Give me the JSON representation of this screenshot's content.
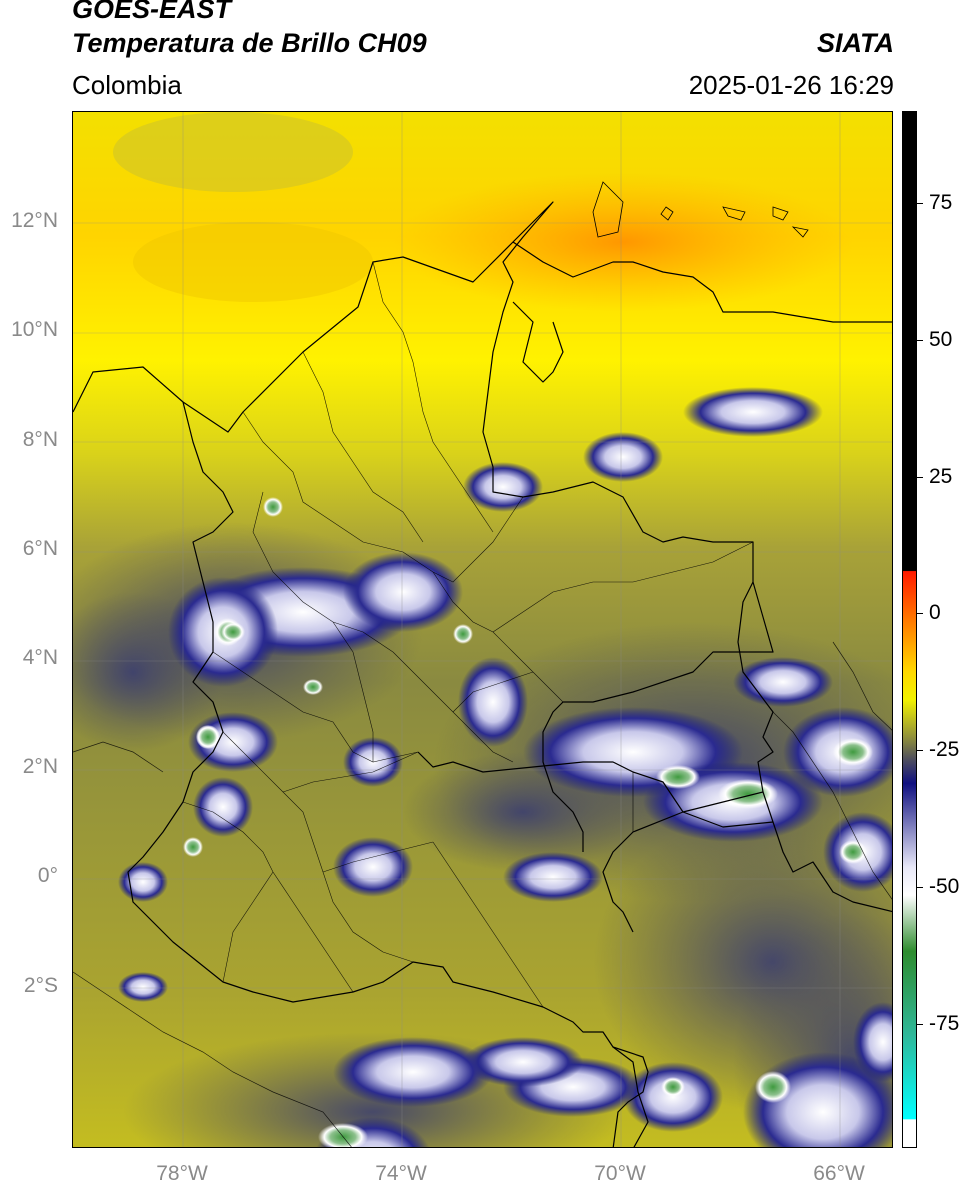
{
  "header": {
    "satellite": "GOES-EAST",
    "product": "Temperatura de Brillo CH09",
    "organization": "SIATA",
    "region": "Colombia",
    "datetime": "2025-01-26 16:29"
  },
  "map": {
    "lon_range": [
      -80,
      -65
    ],
    "lat_range": [
      -5,
      14
    ],
    "lat_ticks": [
      "12°N",
      "10°N",
      "8°N",
      "6°N",
      "4°N",
      "2°N",
      "0°",
      "2°S"
    ],
    "lon_ticks": [
      "78°W",
      "74°W",
      "70°W",
      "66°W"
    ],
    "gridlines": true
  },
  "colorbar": {
    "ticks": [
      "75",
      "50",
      "25",
      "0",
      "-25",
      "-50",
      "-75"
    ],
    "range": [
      -95,
      90
    ],
    "stops": [
      {
        "value": 90,
        "color": "#000000"
      },
      {
        "value": 8,
        "color": "#000000"
      },
      {
        "value": 7.9,
        "color": "#ff1a00"
      },
      {
        "value": 0,
        "color": "#ff7000"
      },
      {
        "value": -10,
        "color": "#ffd800"
      },
      {
        "value": -15,
        "color": "#f2f200"
      },
      {
        "value": -22,
        "color": "#8c8c3c"
      },
      {
        "value": -26,
        "color": "#4a4a60"
      },
      {
        "value": -30,
        "color": "#101080"
      },
      {
        "value": -45,
        "color": "#e8e8f8"
      },
      {
        "value": -50,
        "color": "#ffffff"
      },
      {
        "value": -60,
        "color": "#2e8c2e"
      },
      {
        "value": -75,
        "color": "#2fb89a"
      },
      {
        "value": -90,
        "color": "#00ffff"
      },
      {
        "value": -90.1,
        "color": "#ffffff"
      },
      {
        "value": -95,
        "color": "#ffffff"
      }
    ]
  },
  "colors": {
    "warm_top": "#ffd400",
    "mid_olive": "#b8b42a",
    "cold_navy": "#1b1f7a",
    "border": "#000000",
    "axis_label": "#8a8a8a"
  }
}
